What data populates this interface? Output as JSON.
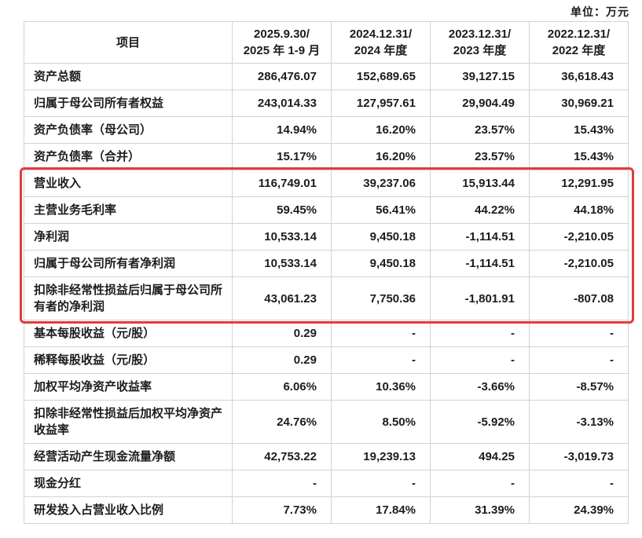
{
  "unit_label": "单位：万元",
  "table": {
    "border_color": "#ccd6d0",
    "header": {
      "item": "项目",
      "periods": [
        [
          "2025.9.30/",
          "2025 年 1-9 月"
        ],
        [
          "2024.12.31/",
          "2024 年度"
        ],
        [
          "2023.12.31/",
          "2023 年度"
        ],
        [
          "2022.12.31/",
          "2022 年度"
        ]
      ]
    },
    "rows": [
      {
        "label": "资产总额",
        "values": [
          "286,476.07",
          "152,689.65",
          "39,127.15",
          "36,618.43"
        ]
      },
      {
        "label": "归属于母公司所有者权益",
        "values": [
          "243,014.33",
          "127,957.61",
          "29,904.49",
          "30,969.21"
        ]
      },
      {
        "label": "资产负债率（母公司）",
        "values": [
          "14.94%",
          "16.20%",
          "23.57%",
          "15.43%"
        ]
      },
      {
        "label": "资产负债率（合并）",
        "values": [
          "15.17%",
          "16.20%",
          "23.57%",
          "15.43%"
        ]
      },
      {
        "label": "营业收入",
        "values": [
          "116,749.01",
          "39,237.06",
          "15,913.44",
          "12,291.95"
        ]
      },
      {
        "label": "主营业务毛利率",
        "values": [
          "59.45%",
          "56.41%",
          "44.22%",
          "44.18%"
        ]
      },
      {
        "label": "净利润",
        "values": [
          "10,533.14",
          "9,450.18",
          "-1,114.51",
          "-2,210.05"
        ]
      },
      {
        "label": "归属于母公司所有者净利润",
        "values": [
          "10,533.14",
          "9,450.18",
          "-1,114.51",
          "-2,210.05"
        ]
      },
      {
        "label": "扣除非经常性损益后归属于母公司所有者的净利润",
        "values": [
          "43,061.23",
          "7,750.36",
          "-1,801.91",
          "-807.08"
        ]
      },
      {
        "label": "基本每股收益（元/股）",
        "values": [
          "0.29",
          "-",
          "-",
          "-"
        ]
      },
      {
        "label": "稀释每股收益（元/股）",
        "values": [
          "0.29",
          "-",
          "-",
          "-"
        ]
      },
      {
        "label": "加权平均净资产收益率",
        "values": [
          "6.06%",
          "10.36%",
          "-3.66%",
          "-8.57%"
        ]
      },
      {
        "label": "扣除非经常性损益后加权平均净资产收益率",
        "values": [
          "24.76%",
          "8.50%",
          "-5.92%",
          "-3.13%"
        ]
      },
      {
        "label": "经营活动产生现金流量净额",
        "values": [
          "42,753.22",
          "19,239.13",
          "494.25",
          "-3,019.73"
        ]
      },
      {
        "label": "现金分红",
        "values": [
          "-",
          "-",
          "-",
          "-"
        ]
      },
      {
        "label": "研发投入占营业收入比例",
        "values": [
          "7.73%",
          "17.84%",
          "31.39%",
          "24.39%"
        ]
      }
    ],
    "highlight": {
      "from_row": 4,
      "to_row": 8,
      "color": "#e23b3b"
    }
  }
}
